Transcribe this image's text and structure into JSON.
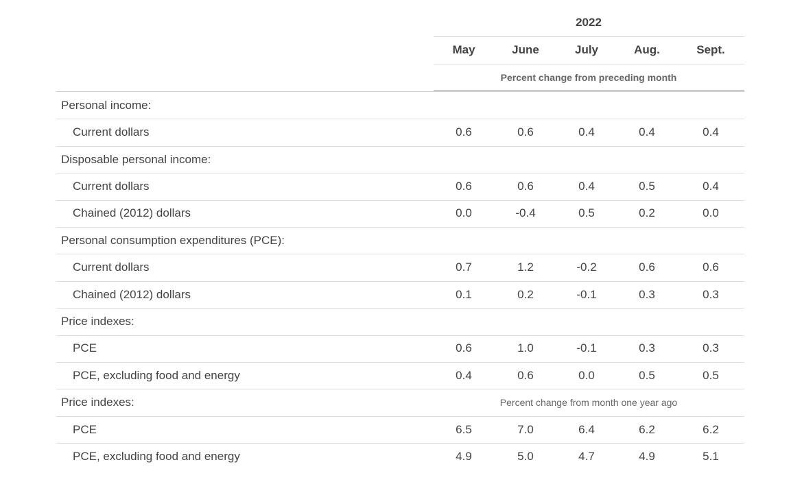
{
  "header": {
    "year": "2022",
    "months": [
      "May",
      "June",
      "July",
      "Aug.",
      "Sept."
    ],
    "subheader": "Percent change from preceding month"
  },
  "sections": [
    {
      "label": "Personal income:",
      "rows": [
        {
          "label": "Current dollars",
          "values": [
            "0.6",
            "0.6",
            "0.4",
            "0.4",
            "0.4"
          ]
        }
      ]
    },
    {
      "label": "Disposable personal income:",
      "rows": [
        {
          "label": "Current dollars",
          "values": [
            "0.6",
            "0.6",
            "0.4",
            "0.5",
            "0.4"
          ]
        },
        {
          "label": "Chained (2012) dollars",
          "values": [
            "0.0",
            "-0.4",
            "0.5",
            "0.2",
            "0.0"
          ]
        }
      ]
    },
    {
      "label": "Personal consumption expenditures (PCE):",
      "rows": [
        {
          "label": "Current dollars",
          "values": [
            "0.7",
            "1.2",
            "-0.2",
            "0.6",
            "0.6"
          ]
        },
        {
          "label": "Chained (2012) dollars",
          "values": [
            "0.1",
            "0.2",
            "-0.1",
            "0.3",
            "0.3"
          ]
        }
      ]
    },
    {
      "label": "Price indexes:",
      "rows": [
        {
          "label": "PCE",
          "values": [
            "0.6",
            "1.0",
            "-0.1",
            "0.3",
            "0.3"
          ]
        },
        {
          "label": "PCE, excluding food and energy",
          "values": [
            "0.4",
            "0.6",
            "0.0",
            "0.5",
            "0.5"
          ]
        }
      ]
    },
    {
      "label": "Price indexes:",
      "note": "Percent change from month one year ago",
      "rows": [
        {
          "label": "PCE",
          "values": [
            "6.5",
            "7.0",
            "6.4",
            "6.2",
            "6.2"
          ]
        },
        {
          "label": "PCE, excluding food and energy",
          "values": [
            "4.9",
            "5.0",
            "4.7",
            "4.9",
            "5.1"
          ]
        }
      ]
    }
  ]
}
